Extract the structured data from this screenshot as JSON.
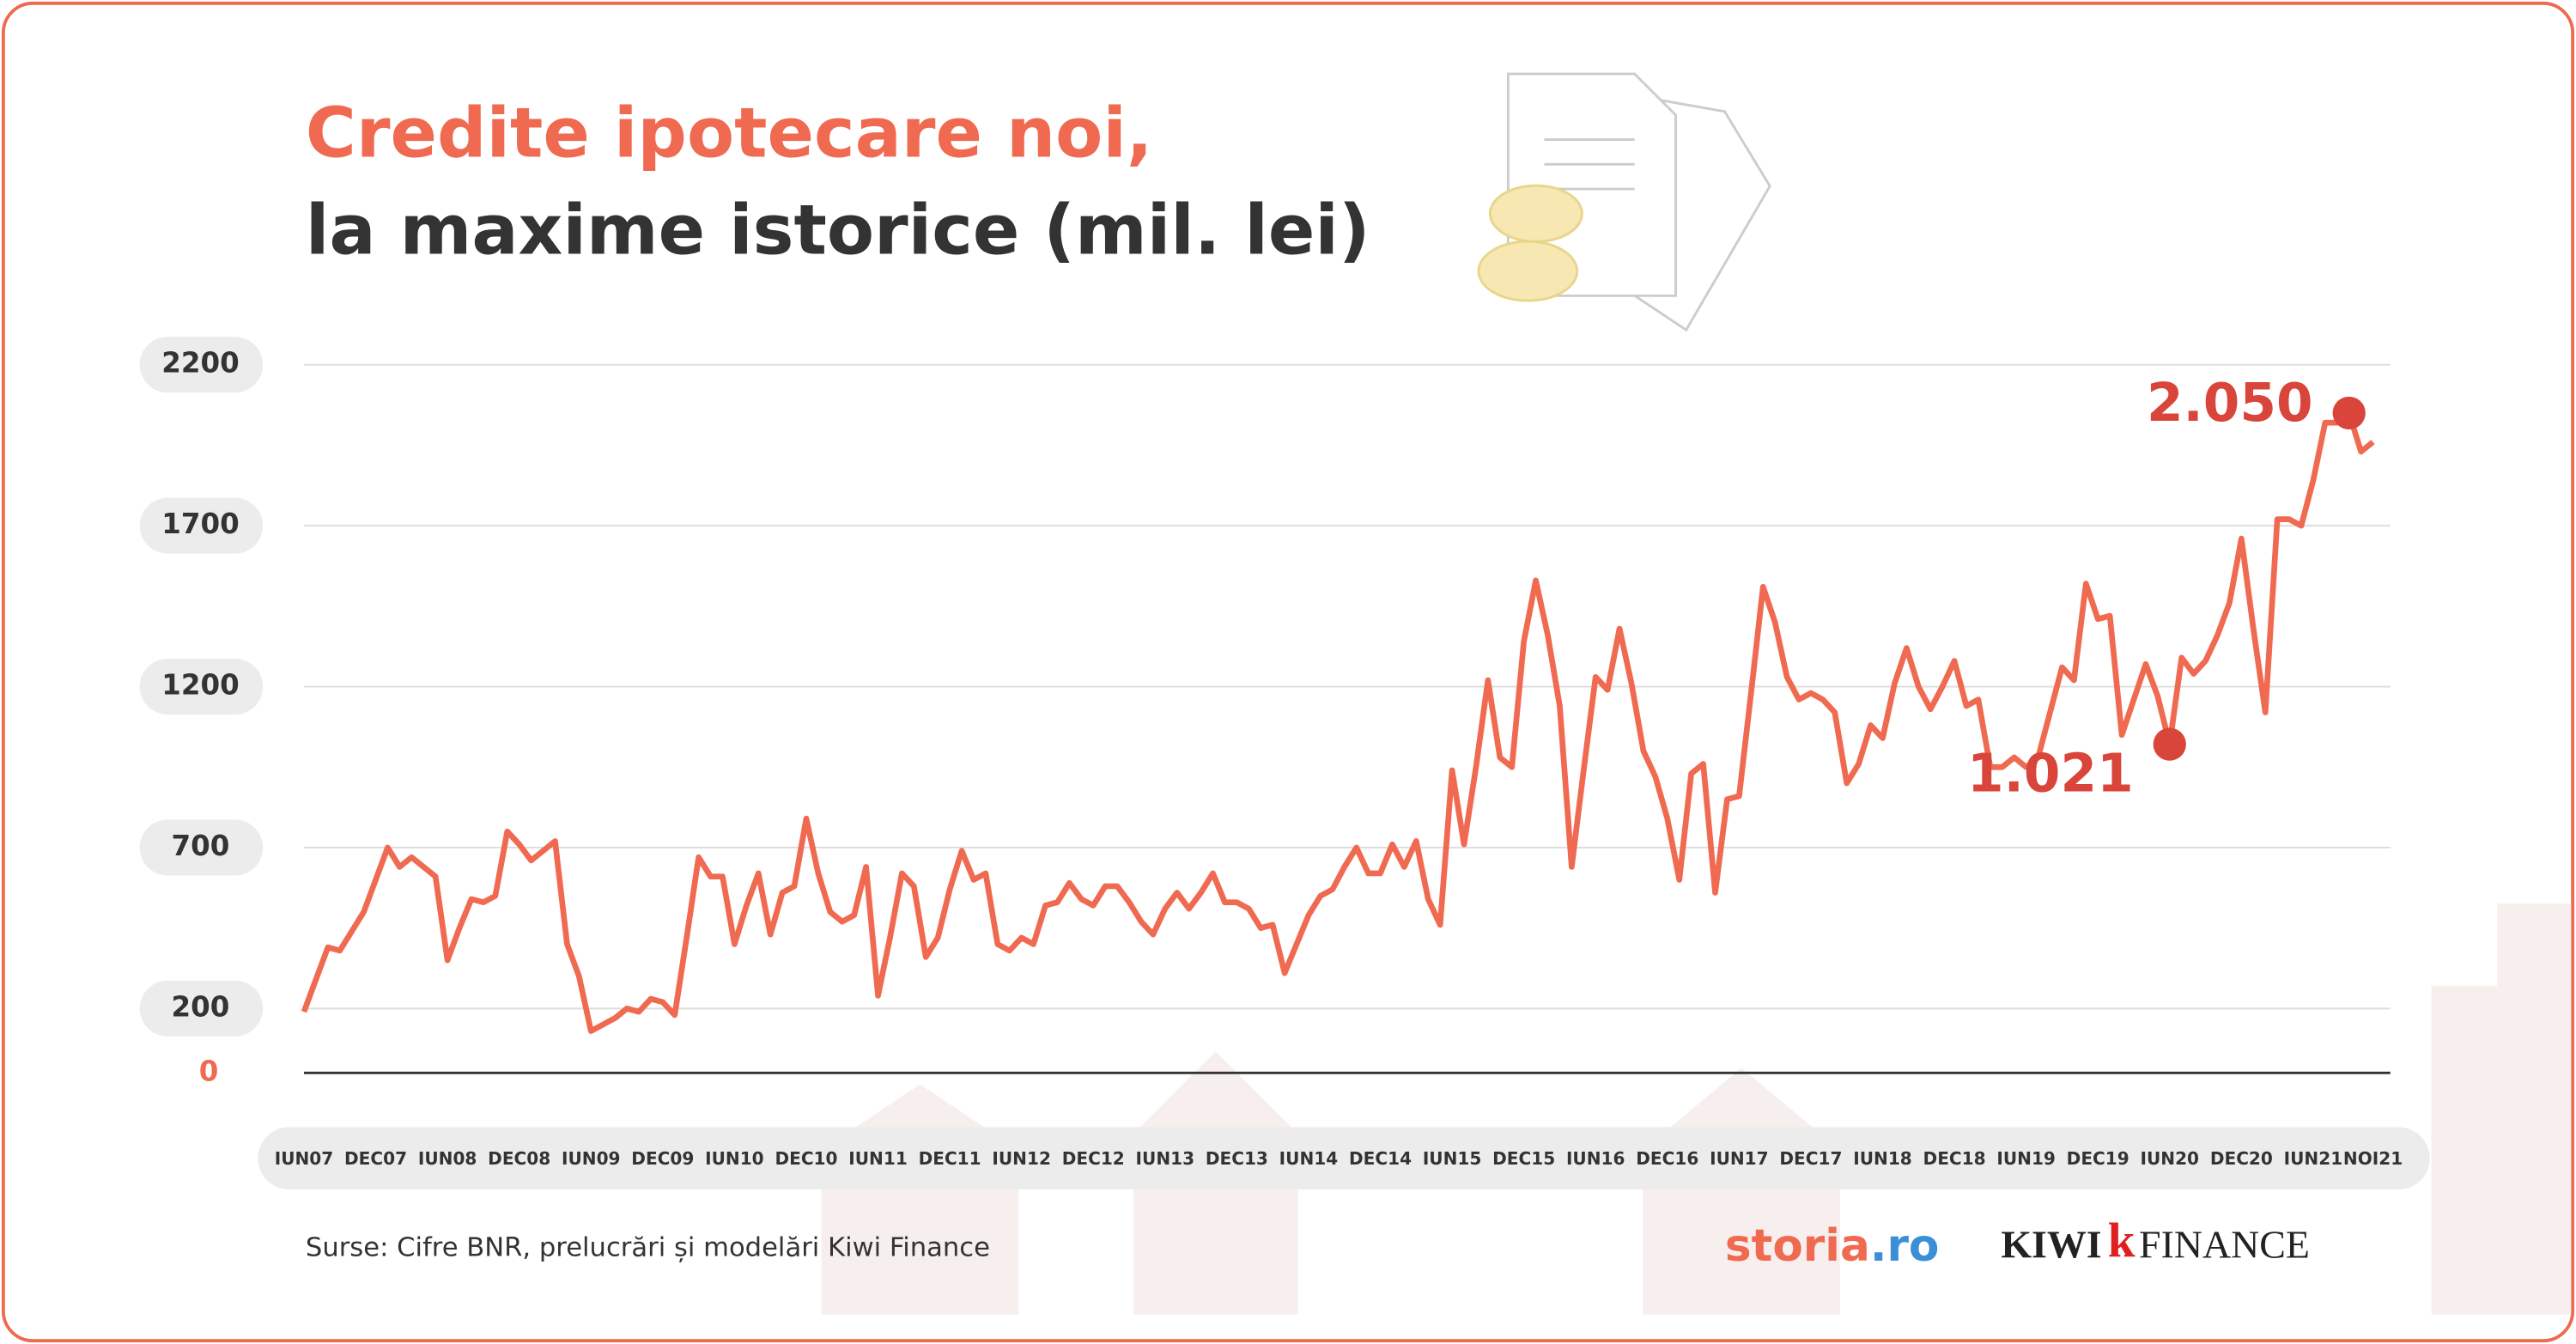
{
  "chart_data": {
    "type": "line",
    "title": "Credite ipotecare noi,",
    "subtitle": "la maxime istorice (mil. lei)",
    "categories": [
      "IUN07",
      null,
      null,
      null,
      null,
      null,
      "DEC07",
      null,
      null,
      null,
      null,
      null,
      "IUN08",
      null,
      null,
      null,
      null,
      null,
      "DEC08",
      null,
      null,
      null,
      null,
      null,
      "IUN09",
      null,
      null,
      null,
      null,
      null,
      "DEC09",
      null,
      null,
      null,
      null,
      null,
      "IUN10",
      null,
      null,
      null,
      null,
      null,
      "DEC10",
      null,
      null,
      null,
      null,
      null,
      "IUN11",
      null,
      null,
      null,
      null,
      null,
      "DEC11",
      null,
      null,
      null,
      null,
      null,
      "IUN12",
      null,
      null,
      null,
      null,
      null,
      "DEC12",
      null,
      null,
      null,
      null,
      null,
      "IUN13",
      null,
      null,
      null,
      null,
      null,
      "DEC13",
      null,
      null,
      null,
      null,
      null,
      "IUN14",
      null,
      null,
      null,
      null,
      null,
      "DEC14",
      null,
      null,
      null,
      null,
      null,
      "IUN15",
      null,
      null,
      null,
      null,
      null,
      "DEC15",
      null,
      null,
      null,
      null,
      null,
      "IUN16",
      null,
      null,
      null,
      null,
      null,
      "DEC16",
      null,
      null,
      null,
      null,
      null,
      "IUN17",
      null,
      null,
      null,
      null,
      null,
      "DEC17",
      null,
      null,
      null,
      null,
      null,
      "IUN18",
      null,
      null,
      null,
      null,
      null,
      "DEC18",
      null,
      null,
      null,
      null,
      null,
      "IUN19",
      null,
      null,
      null,
      null,
      null,
      "DEC19",
      null,
      null,
      null,
      null,
      null,
      "IUN20",
      null,
      null,
      null,
      null,
      null,
      "DEC20",
      null,
      null,
      null,
      null,
      null,
      "IUN21",
      null,
      null,
      null,
      null,
      "NOI21"
    ],
    "values": [
      190,
      290,
      390,
      380,
      440,
      500,
      600,
      700,
      640,
      670,
      640,
      610,
      350,
      450,
      540,
      530,
      550,
      750,
      710,
      660,
      690,
      720,
      400,
      300,
      130,
      150,
      170,
      200,
      190,
      230,
      220,
      180,
      420,
      670,
      610,
      610,
      400,
      520,
      620,
      430,
      560,
      580,
      790,
      620,
      500,
      470,
      490,
      640,
      240,
      420,
      620,
      580,
      360,
      420,
      570,
      690,
      600,
      620,
      400,
      380,
      420,
      400,
      520,
      530,
      590,
      540,
      520,
      580,
      580,
      530,
      470,
      430,
      510,
      560,
      510,
      560,
      620,
      530,
      530,
      510,
      450,
      460,
      310,
      400,
      490,
      550,
      570,
      640,
      700,
      620,
      620,
      710,
      640,
      720,
      540,
      460,
      940,
      710,
      950,
      1220,
      980,
      950,
      1340,
      1530,
      1360,
      1140,
      640,
      940,
      1230,
      1190,
      1380,
      1210,
      1000,
      920,
      790,
      600,
      930,
      960,
      560,
      850,
      860,
      1180,
      1510,
      1400,
      1230,
      1160,
      1180,
      1160,
      1120,
      900,
      960,
      1080,
      1040,
      1210,
      1320,
      1200,
      1130,
      1200,
      1280,
      1140,
      1160,
      950,
      950,
      980,
      950,
      980,
      1120,
      1260,
      1220,
      1520,
      1410,
      1420,
      1050,
      1160,
      1270,
      1170,
      1021,
      1290,
      1240,
      1280,
      1360,
      1460,
      1660,
      1380,
      1120,
      1720,
      1720,
      1700,
      1840,
      2020,
      2020,
      2050,
      1930,
      1960
    ],
    "color": "#ef6a50",
    "ylim": [
      0,
      2200
    ],
    "yticks": [
      0,
      200,
      700,
      1200,
      1700,
      2200
    ],
    "grid": true,
    "annotations": [
      {
        "text": "1.021",
        "value": 1021,
        "color": "#d9453a"
      },
      {
        "text": "2.050",
        "value": 2050,
        "color": "#d9453a"
      }
    ]
  },
  "source": "Surse: Cifre BNR, prelucrări și modelări Kiwi Finance",
  "logos": [
    "storia",
    ".ro",
    "KIWI",
    "FINANCE"
  ]
}
